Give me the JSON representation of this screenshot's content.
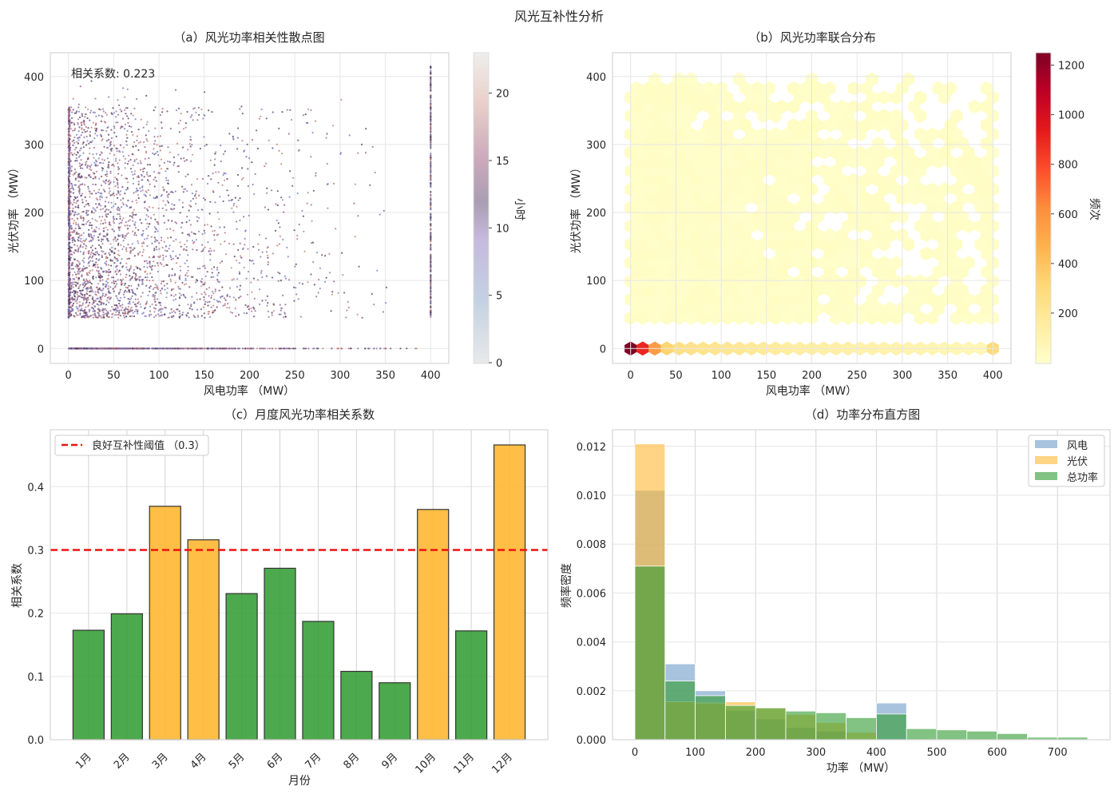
{
  "title": "风光互补性分析",
  "chart_data": [
    {
      "id": "a",
      "type": "scatter",
      "title": "（a）风光功率相关性散点图",
      "xlabel": "风电功率 （MW）",
      "ylabel": "光伏功率 （MW）",
      "xlim": [
        -20,
        420
      ],
      "ylim": [
        -22,
        435
      ],
      "xticks": [
        0,
        50,
        100,
        150,
        200,
        250,
        300,
        350,
        400
      ],
      "yticks": [
        0,
        100,
        200,
        300,
        400
      ],
      "annotation": "相关系数: 0.223",
      "correlation": 0.223,
      "grid": true,
      "colorbar": {
        "label": "小时",
        "range": [
          0,
          23
        ],
        "ticks": [
          0,
          5,
          10,
          15,
          20
        ]
      }
    },
    {
      "id": "b",
      "type": "heatmap",
      "subtype": "hexbin",
      "title": "（b）风光功率联合分布",
      "xlabel": "风电功率 （MW）",
      "ylabel": "光伏功率 （MW）",
      "xlim": [
        -20,
        420
      ],
      "ylim": [
        -22,
        435
      ],
      "xticks": [
        0,
        50,
        100,
        150,
        200,
        250,
        300,
        350,
        400
      ],
      "yticks": [
        0,
        100,
        200,
        300,
        400
      ],
      "grid": true,
      "bottom_row_x": [
        0,
        13.3,
        26.7,
        40,
        53.3,
        66.7,
        80,
        93.3,
        106.7,
        120,
        133.3,
        146.7,
        160,
        173.3,
        186.7,
        200,
        213.3,
        226.7,
        240,
        253.3,
        266.7,
        280,
        293.3,
        306.7,
        320,
        333.3,
        346.7,
        360,
        373.3,
        386.7,
        400
      ],
      "bottom_row_counts": [
        1250,
        900,
        560,
        330,
        260,
        240,
        230,
        220,
        210,
        200,
        190,
        180,
        170,
        160,
        150,
        145,
        140,
        135,
        130,
        125,
        120,
        115,
        110,
        105,
        100,
        95,
        90,
        85,
        80,
        75,
        300
      ],
      "upper_region_count_range": [
        1,
        40
      ],
      "colorbar": {
        "label": "频次",
        "range": [
          0,
          1250
        ],
        "ticks": [
          200,
          400,
          600,
          800,
          1000,
          1200
        ]
      }
    },
    {
      "id": "c",
      "type": "bar",
      "title": "（c）月度风光功率相关系数",
      "xlabel": "月份",
      "ylabel": "相关系数",
      "categories": [
        "1月",
        "2月",
        "3月",
        "4月",
        "5月",
        "6月",
        "7月",
        "8月",
        "9月",
        "10月",
        "11月",
        "12月"
      ],
      "values": [
        0.173,
        0.199,
        0.369,
        0.316,
        0.231,
        0.271,
        0.187,
        0.108,
        0.09,
        0.364,
        0.172,
        0.466
      ],
      "threshold": 0.3,
      "legend": [
        "良好互补性阈值 （0.3）"
      ],
      "legend_position": "top-left",
      "ylim": [
        0,
        0.49
      ],
      "yticks": [
        0.0,
        0.1,
        0.2,
        0.3,
        0.4
      ],
      "colors": {
        "below": "#2e9a2e",
        "above": "#ffb732",
        "threshold": "#ee1111"
      }
    },
    {
      "id": "d",
      "type": "bar",
      "subtype": "histogram",
      "title": "（d）功率分布直方图",
      "xlabel": "功率 （MW）",
      "ylabel": "频率密度",
      "bin_edges": [
        0,
        50,
        100,
        150,
        200,
        250,
        300,
        350,
        400,
        450,
        500,
        550,
        600,
        650,
        700,
        750
      ],
      "series": [
        {
          "name": "风电",
          "color": "#6e9bc8",
          "values": [
            0.0102,
            0.0031,
            0.002,
            0.0012,
            0.00085,
            0.0005,
            0.00035,
            0.0,
            0.0015,
            0,
            0,
            0,
            0,
            0,
            0
          ]
        },
        {
          "name": "光伏",
          "color": "#ffb732",
          "values": [
            0.0121,
            0.00155,
            0.0015,
            0.00155,
            0.0013,
            0.00103,
            0.0007,
            0.0003,
            0,
            0,
            0,
            0,
            0,
            0,
            0
          ]
        },
        {
          "name": "总功率",
          "color": "#2e9a2e",
          "values": [
            0.0071,
            0.0024,
            0.0018,
            0.0014,
            0.0013,
            0.00117,
            0.0011,
            0.0009,
            0.00105,
            0.00045,
            0.0004,
            0.00035,
            0.00025,
            0.0001,
            0.0001
          ]
        }
      ],
      "legend_position": "top-right",
      "xlim": [
        -37,
        787
      ],
      "ylim": [
        0,
        0.01268
      ],
      "xticks": [
        0,
        100,
        200,
        300,
        400,
        500,
        600,
        700
      ],
      "yticks": [
        0.0,
        0.002,
        0.004,
        0.006,
        0.008,
        0.01,
        0.012
      ]
    }
  ]
}
